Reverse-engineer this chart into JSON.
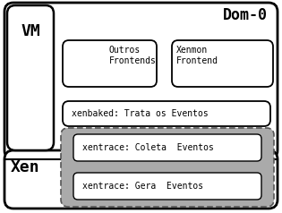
{
  "bg_color": "#ffffff",
  "gray_color": "#aaaaaa",
  "white_color": "#ffffff",
  "text_color": "#000000",
  "fig_width": 3.15,
  "fig_height": 2.38,
  "vm_label": "VM",
  "dom0_label": "Dom-0",
  "xen_label": "Xen",
  "outros_label": "Outros\nFrontends",
  "xenmon_label": "Xenmon\nFrontend",
  "xenbaked_label": "xenbaked: Trata os Eventos",
  "xentrace_coleta_label": "xentrace: Coleta  Eventos",
  "xentrace_gera_label": "xentrace: Gera  Eventos"
}
